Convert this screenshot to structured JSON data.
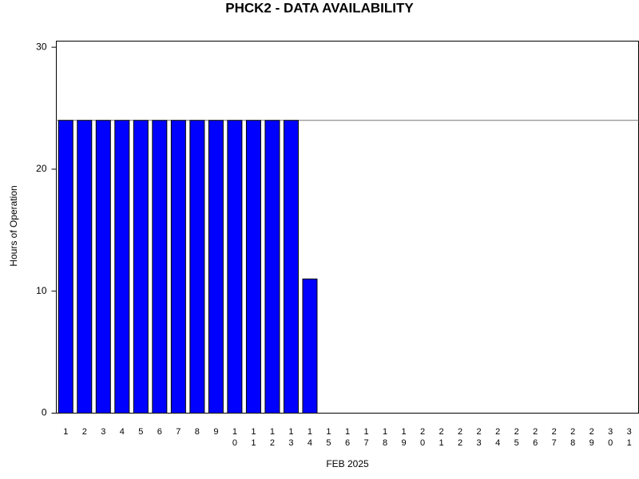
{
  "chart_data": {
    "type": "bar",
    "title": "PHCK2 - DATA AVAILABILITY",
    "x_label": "FEB 2025",
    "y_label": "Hours of Operation",
    "categories": [
      "1",
      "2",
      "3",
      "4",
      "5",
      "6",
      "7",
      "8",
      "9",
      "10",
      "11",
      "12",
      "13",
      "14",
      "15",
      "16",
      "17",
      "18",
      "19",
      "20",
      "21",
      "22",
      "23",
      "24",
      "25",
      "26",
      "27",
      "28",
      "29",
      "30",
      "31"
    ],
    "values": [
      24,
      24,
      24,
      24,
      24,
      24,
      24,
      24,
      24,
      24,
      24,
      24,
      24,
      11,
      0,
      0,
      0,
      0,
      0,
      0,
      0,
      0,
      0,
      0,
      0,
      0,
      0,
      0,
      0,
      0,
      0
    ],
    "color": "#0000ff",
    "reference_line": 24,
    "ylim": [
      0,
      30.5
    ],
    "yticks": [
      0,
      10,
      20,
      30
    ]
  }
}
